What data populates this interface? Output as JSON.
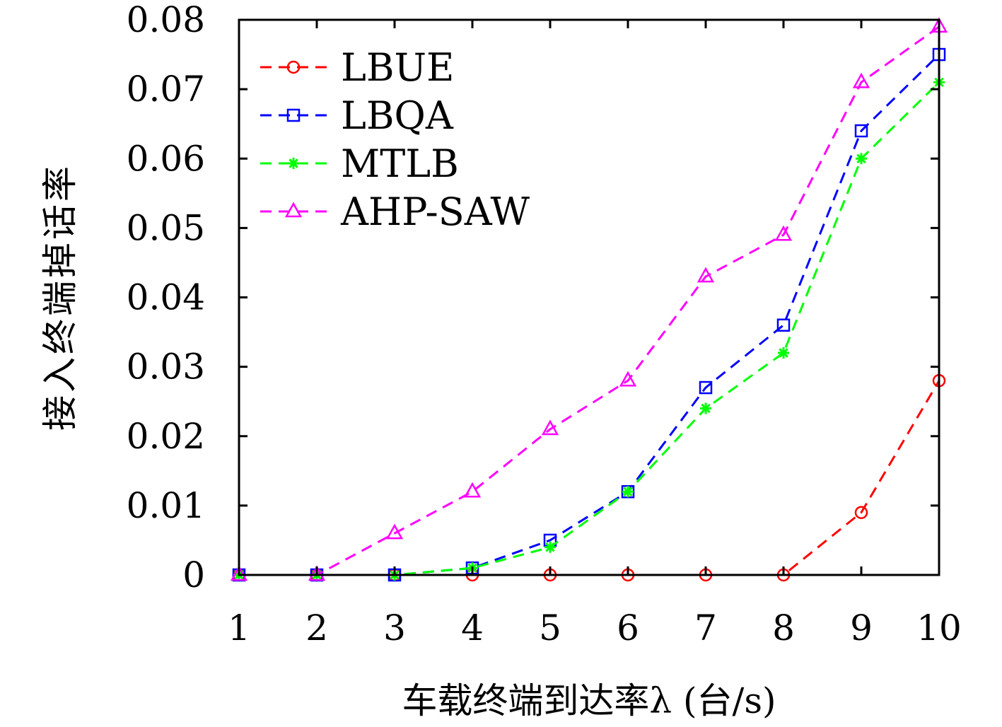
{
  "chart_data": {
    "type": "line",
    "xlabel": "车载终端到达率λ (台/s)",
    "ylabel": "接入终端掉话率",
    "x": [
      1,
      2,
      3,
      4,
      5,
      6,
      7,
      8,
      9,
      10
    ],
    "xlim": [
      1,
      10
    ],
    "ylim": [
      0,
      0.08
    ],
    "yticks": [
      "0",
      "0.01",
      "0.02",
      "0.03",
      "0.04",
      "0.05",
      "0.06",
      "0.07",
      "0.08"
    ],
    "xticks": [
      "1",
      "2",
      "3",
      "4",
      "5",
      "6",
      "7",
      "8",
      "9",
      "10"
    ],
    "grid": false,
    "legend_position": "top-left",
    "series": [
      {
        "name": "LBUE",
        "color": "#ff0000",
        "marker": "circle",
        "values": [
          0,
          0,
          0,
          0,
          0,
          0,
          0,
          0,
          0.009,
          0.028
        ]
      },
      {
        "name": "LBQA",
        "color": "#0000ff",
        "marker": "square",
        "values": [
          0,
          0,
          0,
          0.001,
          0.005,
          0.012,
          0.027,
          0.036,
          0.064,
          0.075
        ]
      },
      {
        "name": "MTLB",
        "color": "#00ff00",
        "marker": "star",
        "values": [
          0,
          0,
          0,
          0.001,
          0.004,
          0.012,
          0.024,
          0.032,
          0.06,
          0.071
        ]
      },
      {
        "name": "AHP-SAW",
        "color": "#ff00ff",
        "marker": "triangle",
        "values": [
          0,
          0,
          0.006,
          0.012,
          0.021,
          0.028,
          0.043,
          0.049,
          0.071,
          0.079
        ]
      }
    ]
  }
}
